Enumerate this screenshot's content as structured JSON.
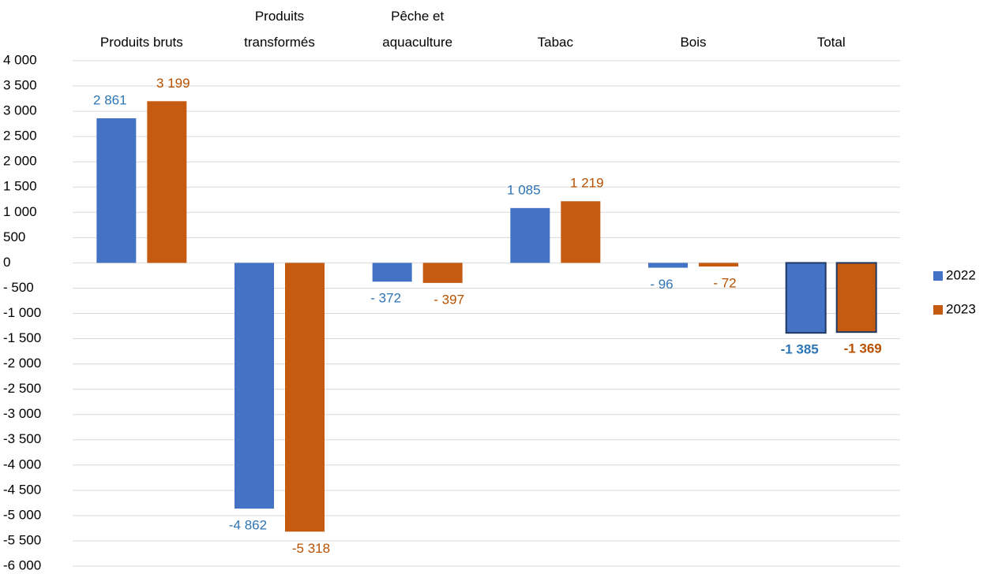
{
  "chart_data": {
    "type": "bar",
    "categories": [
      "Produits bruts",
      "Produits\ntransformés",
      "Pêche et\naquaculture",
      "Tabac",
      "Bois",
      "Total"
    ],
    "series": [
      {
        "name": "2022",
        "color": "#4472c4",
        "values": [
          2861,
          -4862,
          -372,
          1085,
          -96,
          -1385
        ],
        "value_labels": [
          "2 861",
          "-4 862",
          "- 372",
          "1 085",
          "- 96",
          "-1 385"
        ]
      },
      {
        "name": "2023",
        "color": "#c55a11",
        "values": [
          3199,
          -5318,
          -397,
          1219,
          -72,
          -1369
        ],
        "value_labels": [
          "3 199",
          "-5 318",
          "- 397",
          "1 219",
          "- 72",
          "-1 369"
        ]
      }
    ],
    "ylim": [
      -6000,
      4000
    ],
    "yticks": [
      {
        "value": 4000,
        "label": "4 000"
      },
      {
        "value": 3500,
        "label": "3 500"
      },
      {
        "value": 3000,
        "label": "3 000"
      },
      {
        "value": 2500,
        "label": "2 500"
      },
      {
        "value": 2000,
        "label": "2 000"
      },
      {
        "value": 1500,
        "label": "1 500"
      },
      {
        "value": 1000,
        "label": "1 000"
      },
      500,
      0,
      {
        "value": -500,
        "label": "- 500"
      },
      {
        "value": -1000,
        "label": "-1 000"
      },
      {
        "value": -1500,
        "label": "-1 500"
      },
      {
        "value": -2000,
        "label": "-2 000"
      },
      {
        "value": -2500,
        "label": "-2 500"
      },
      {
        "value": -3000,
        "label": "-3 000"
      },
      {
        "value": -3500,
        "label": "-3 500"
      },
      {
        "value": -4000,
        "label": "-4 000"
      },
      {
        "value": -4500,
        "label": "-4 500"
      },
      {
        "value": -5000,
        "label": "-5 000"
      },
      {
        "value": -5500,
        "label": "-5 500"
      },
      {
        "value": -6000,
        "label": "-6 000"
      }
    ],
    "grid": true,
    "legend": "right"
  }
}
